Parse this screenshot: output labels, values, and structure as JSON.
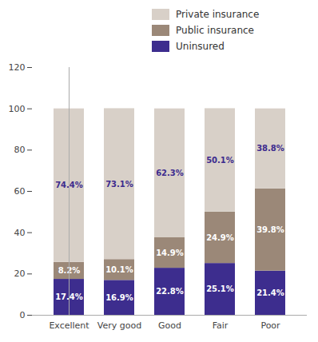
{
  "chart_data": {
    "type": "bar",
    "stacked": true,
    "categories": [
      "Excellent",
      "Very good",
      "Good",
      "Fair",
      "Poor"
    ],
    "series": [
      {
        "name": "Uninsured",
        "color": "#3D2D8E",
        "values": [
          17.4,
          16.9,
          22.8,
          25.1,
          21.4
        ],
        "value_labels": [
          "17.4%",
          "16.9%",
          "22.8%",
          "25.1%",
          "21.4%"
        ]
      },
      {
        "name": "Public insurance",
        "color": "#9B8878",
        "values": [
          8.2,
          10.1,
          14.9,
          24.9,
          39.8
        ],
        "value_labels": [
          "8.2%",
          "10.1%",
          "14.9%",
          "24.9%",
          "39.8%"
        ]
      },
      {
        "name": "Private insurance",
        "color": "#D8D0C8",
        "values": [
          74.4,
          73.1,
          62.3,
          50.1,
          38.8
        ],
        "value_labels": [
          "74.4%",
          "73.1%",
          "62.3%",
          "50.1%",
          "38.8%"
        ]
      }
    ],
    "ylim": [
      0,
      120
    ],
    "yticks": [
      0,
      20,
      40,
      60,
      80,
      100,
      120
    ],
    "grid": false,
    "data_labels": true
  }
}
